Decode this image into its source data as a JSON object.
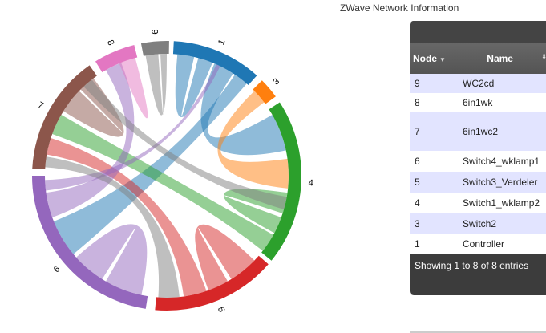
{
  "page_title": "ZWave Network Information",
  "chord": {
    "groups": [
      {
        "label": "1",
        "color": "#1f77b4"
      },
      {
        "label": "3",
        "color": "#ff7f0e"
      },
      {
        "label": "4",
        "color": "#2ca02c"
      },
      {
        "label": "5",
        "color": "#d62728"
      },
      {
        "label": "6",
        "color": "#9467bd"
      },
      {
        "label": "7",
        "color": "#8c564b"
      },
      {
        "label": "8",
        "color": "#e377c2"
      },
      {
        "label": "9",
        "color": "#7f7f7f"
      }
    ],
    "links": [
      {
        "from": "1",
        "to": "1"
      },
      {
        "from": "1",
        "to": "4"
      },
      {
        "from": "1",
        "to": "6"
      },
      {
        "from": "3",
        "to": "4"
      },
      {
        "from": "4",
        "to": "4"
      },
      {
        "from": "4",
        "to": "7"
      },
      {
        "from": "5",
        "to": "5"
      },
      {
        "from": "5",
        "to": "7"
      },
      {
        "from": "6",
        "to": "6"
      },
      {
        "from": "6",
        "to": "8"
      },
      {
        "from": "6",
        "to": "1"
      },
      {
        "from": "7",
        "to": "7"
      },
      {
        "from": "8",
        "to": "8"
      },
      {
        "from": "9",
        "to": "9"
      },
      {
        "from": "9",
        "to": "4"
      },
      {
        "from": "9",
        "to": "5"
      }
    ]
  },
  "table": {
    "headers": {
      "node": "Node",
      "name": "Name"
    },
    "rows": [
      {
        "node": "9",
        "name": "WC2cd"
      },
      {
        "node": "8",
        "name": "6in1wk"
      },
      {
        "node": "7",
        "name": "6in1wc2"
      },
      {
        "node": "6",
        "name": "Switch4_wklamp1"
      },
      {
        "node": "5",
        "name": "Switch3_Verdeler"
      },
      {
        "node": "4",
        "name": "Switch1_wklamp2"
      },
      {
        "node": "3",
        "name": "Switch2"
      },
      {
        "node": "1",
        "name": "Controller"
      }
    ],
    "info": "Showing 1 to 8 of 8 entries"
  }
}
